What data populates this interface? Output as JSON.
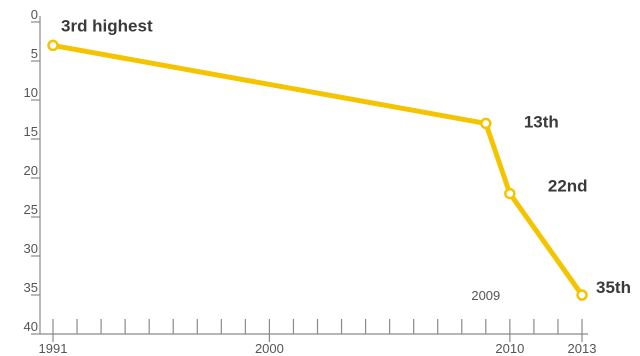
{
  "chart_data": {
    "type": "line",
    "x": [
      1991,
      2009,
      2010,
      2013
    ],
    "series": [
      {
        "values": [
          3,
          13,
          22,
          35
        ],
        "color": "#F5C400"
      }
    ],
    "annotations": [
      "3rd highest",
      "13th",
      "22nd",
      "35th"
    ],
    "ylim": [
      0,
      40
    ],
    "y_inverted": true,
    "y_ticks": [
      0,
      5,
      10,
      15,
      20,
      25,
      30,
      35,
      40
    ],
    "y_tick_labels": [
      "0",
      "5",
      "10",
      "15",
      "20",
      "25",
      "30",
      "35",
      "40"
    ],
    "xlim": [
      1991,
      2013
    ],
    "x_minor_ticks": [
      1991,
      1992,
      1993,
      1994,
      1995,
      1996,
      1997,
      1998,
      1999,
      2000,
      2001,
      2002,
      2003,
      2004,
      2005,
      2006,
      2007,
      2008,
      2009,
      2010,
      2011,
      2012,
      2013
    ],
    "x_tick_labels": [
      {
        "value": 1991,
        "label": "1991"
      },
      {
        "value": 2000,
        "label": "2000"
      },
      {
        "value": 2009,
        "label": "2009"
      },
      {
        "value": 2010,
        "label": "2010"
      },
      {
        "value": 2013,
        "label": "2013"
      }
    ],
    "grid": false,
    "legend": "none"
  }
}
